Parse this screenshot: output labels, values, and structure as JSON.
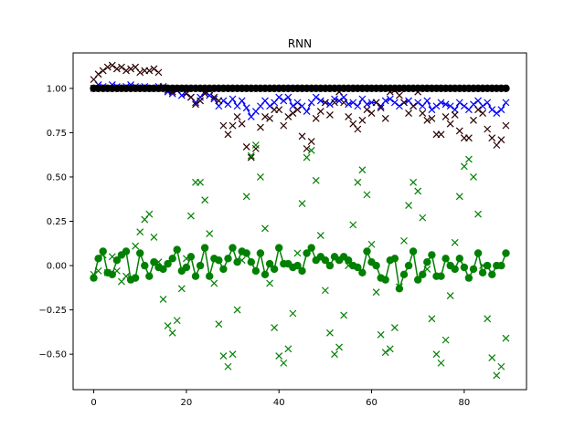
{
  "chart_data": {
    "type": "scatter",
    "title": "RNN",
    "xlabel": "",
    "ylabel": "",
    "xlim": [
      -4.45,
      93.45
    ],
    "ylim": [
      -0.7,
      1.2
    ],
    "x_ticks": [
      0,
      20,
      40,
      60,
      80
    ],
    "y_ticks": [
      -0.5,
      -0.25,
      0.0,
      0.25,
      0.5,
      0.75,
      1.0
    ],
    "x_tick_labels": [
      "0",
      "20",
      "40",
      "60",
      "80"
    ],
    "y_tick_labels": [
      "−0.50",
      "−0.25",
      "0.00",
      "0.25",
      "0.50",
      "0.75",
      "1.00"
    ],
    "grid": false,
    "colors": {
      "blue": "#0000ff",
      "darkred": "#2b0000",
      "green": "#008000",
      "black": "#000000"
    },
    "series": [
      {
        "style": "blue-x-line",
        "color": "#0000ff",
        "values": [
          1.0,
          1.02,
          1.01,
          1.0,
          1.02,
          1.01,
          1.0,
          1.01,
          1.02,
          1.01,
          1.0,
          1.01,
          1.0,
          1.0,
          1.01,
          1.0,
          0.98,
          0.97,
          0.99,
          0.96,
          0.97,
          0.95,
          0.92,
          0.95,
          0.98,
          0.96,
          0.94,
          0.9,
          0.93,
          0.91,
          0.94,
          0.9,
          0.93,
          0.89,
          0.84,
          0.87,
          0.9,
          0.93,
          0.9,
          0.92,
          0.95,
          0.93,
          0.95,
          0.9,
          0.92,
          0.9,
          0.87,
          0.92,
          0.95,
          0.93,
          0.92,
          0.91,
          0.94,
          0.93,
          0.95,
          0.91,
          0.92,
          0.9,
          0.94,
          0.91,
          0.92,
          0.92,
          0.9,
          0.93,
          0.94,
          0.92,
          0.9,
          0.92,
          0.93,
          0.9,
          0.92,
          0.9,
          0.93,
          0.88,
          0.9,
          0.92,
          0.91,
          0.9,
          0.88,
          0.92,
          0.9,
          0.88,
          0.91,
          0.93,
          0.9,
          0.92,
          0.88,
          0.86,
          0.88,
          0.92
        ]
      },
      {
        "style": "darkred-x",
        "color": "#2b0000",
        "values": [
          1.05,
          1.08,
          1.1,
          1.12,
          1.13,
          1.11,
          1.12,
          1.1,
          1.11,
          1.12,
          1.09,
          1.1,
          1.1,
          1.11,
          1.09,
          1.01,
          0.99,
          0.98,
          0.99,
          1.0,
          0.97,
          0.95,
          0.91,
          0.93,
          0.97,
          0.99,
          0.95,
          0.93,
          0.79,
          0.74,
          0.79,
          0.84,
          0.8,
          0.67,
          0.61,
          0.66,
          0.78,
          0.84,
          0.83,
          0.88,
          0.88,
          0.79,
          0.84,
          0.86,
          0.88,
          0.73,
          0.66,
          0.7,
          0.83,
          0.87,
          0.92,
          0.85,
          0.92,
          0.98,
          0.92,
          0.84,
          0.8,
          0.77,
          0.82,
          0.88,
          0.86,
          0.92,
          0.89,
          0.83,
          0.98,
          0.99,
          0.96,
          0.92,
          0.86,
          0.9,
          0.98,
          0.86,
          0.82,
          0.83,
          0.74,
          0.74,
          0.84,
          0.8,
          0.85,
          0.76,
          0.72,
          0.72,
          0.82,
          0.88,
          0.86,
          0.77,
          0.72,
          0.68,
          0.71,
          0.79
        ]
      },
      {
        "style": "green-x",
        "color": "#008000",
        "values": [
          -0.05,
          -0.03,
          0.06,
          -0.04,
          0.05,
          -0.03,
          -0.09,
          -0.06,
          -0.07,
          0.11,
          0.19,
          0.26,
          0.29,
          0.16,
          0.02,
          -0.19,
          -0.34,
          -0.38,
          -0.31,
          -0.13,
          0.04,
          0.28,
          0.47,
          0.47,
          0.37,
          0.18,
          -0.1,
          -0.33,
          -0.51,
          -0.57,
          -0.5,
          -0.25,
          0.03,
          0.39,
          0.62,
          0.68,
          0.5,
          0.21,
          -0.1,
          -0.35,
          -0.51,
          -0.55,
          -0.47,
          -0.27,
          0.07,
          0.35,
          0.61,
          0.65,
          0.48,
          0.17,
          -0.14,
          -0.38,
          -0.5,
          -0.46,
          -0.28,
          0.0,
          0.23,
          0.47,
          0.54,
          0.4,
          0.12,
          -0.15,
          -0.39,
          -0.49,
          -0.47,
          -0.35,
          -0.12,
          0.14,
          0.34,
          0.47,
          0.42,
          0.27,
          -0.02,
          -0.3,
          -0.5,
          -0.55,
          -0.42,
          -0.17,
          0.13,
          0.39,
          0.56,
          0.6,
          0.5,
          0.29,
          0.0,
          -0.3,
          -0.52,
          -0.62,
          -0.57,
          -0.41
        ]
      },
      {
        "style": "green-o-line",
        "color": "#008000",
        "values": [
          -0.07,
          0.04,
          0.08,
          -0.04,
          -0.05,
          0.03,
          0.06,
          0.08,
          -0.08,
          -0.07,
          0.07,
          0.0,
          -0.06,
          0.02,
          -0.01,
          -0.02,
          0.01,
          0.04,
          0.09,
          -0.03,
          -0.01,
          0.05,
          -0.06,
          0.0,
          0.1,
          -0.06,
          0.04,
          0.03,
          -0.02,
          0.04,
          0.1,
          0.02,
          0.08,
          0.07,
          0.02,
          -0.03,
          0.07,
          -0.05,
          0.01,
          -0.02,
          0.1,
          0.01,
          0.01,
          -0.01,
          0.0,
          -0.03,
          0.07,
          0.1,
          0.03,
          0.05,
          0.03,
          0.0,
          0.05,
          0.03,
          0.05,
          0.03,
          0.0,
          -0.01,
          -0.04,
          0.08,
          0.02,
          0.0,
          -0.07,
          -0.08,
          0.03,
          0.04,
          -0.13,
          -0.05,
          0.0,
          0.08,
          -0.08,
          -0.05,
          0.02,
          0.06,
          -0.06,
          -0.06,
          0.04,
          0.0,
          -0.02,
          0.04,
          -0.01,
          -0.07,
          -0.02,
          0.07,
          -0.04,
          0.0,
          -0.05,
          0.0,
          0.0,
          0.07
        ]
      },
      {
        "style": "black-o-line",
        "color": "#000000",
        "values": [
          1.0,
          1.0,
          1.0,
          1.0,
          1.0,
          1.0,
          1.0,
          1.0,
          1.0,
          1.0,
          1.0,
          1.0,
          1.0,
          1.0,
          1.0,
          1.0,
          1.0,
          1.0,
          1.0,
          1.0,
          1.0,
          1.0,
          1.0,
          1.0,
          1.0,
          1.0,
          1.0,
          1.0,
          1.0,
          1.0,
          1.0,
          1.0,
          1.0,
          1.0,
          1.0,
          1.0,
          1.0,
          1.0,
          1.0,
          1.0,
          1.0,
          1.0,
          1.0,
          1.0,
          1.0,
          1.0,
          1.0,
          1.0,
          1.0,
          1.0,
          1.0,
          1.0,
          1.0,
          1.0,
          1.0,
          1.0,
          1.0,
          1.0,
          1.0,
          1.0,
          1.0,
          1.0,
          1.0,
          1.0,
          1.0,
          1.0,
          1.0,
          1.0,
          1.0,
          1.0,
          1.0,
          1.0,
          1.0,
          1.0,
          1.0,
          1.0,
          1.0,
          1.0,
          1.0,
          1.0,
          1.0,
          1.0,
          1.0,
          1.0,
          1.0,
          1.0,
          1.0,
          1.0,
          1.0,
          1.0
        ]
      }
    ]
  }
}
